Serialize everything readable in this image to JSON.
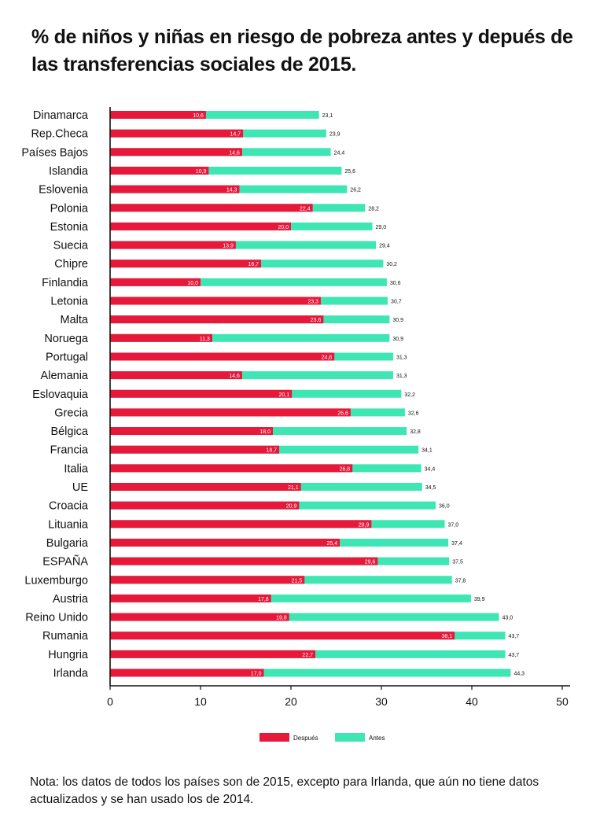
{
  "title": "% de niños y niñas en riesgo de pobreza antes y depués de las transferencias sociales de 2015.",
  "note": "Nota: los datos de todos los países son de 2015, excepto para Irlanda, que aún no tiene datos actualizados y se han usado los de 2014.",
  "colors": {
    "despues": "#e8183a",
    "antes": "#3ee6b4",
    "axis": "#111111"
  },
  "chart_data": {
    "type": "bar",
    "orientation": "horizontal",
    "stacked": "overlay",
    "categories": [
      "Dinamarca",
      "Rep.Checa",
      "Países Bajos",
      "Islandia",
      "Eslovenia",
      "Polonia",
      "Estonia",
      "Suecia",
      "Chipre",
      "Finlandia",
      "Letonia",
      "Malta",
      "Noruega",
      "Portugal",
      "Alemania",
      "Eslovaquia",
      "Grecia",
      "Bélgica",
      "Francia",
      "Italia",
      "UE",
      "Croacia",
      "Lituania",
      "Bulgaria",
      "ESPAÑA",
      "Luxemburgo",
      "Austria",
      "Reino Unido",
      "Rumania",
      "Hungria",
      "Irlanda"
    ],
    "series": [
      {
        "name": "Después",
        "values": [
          10.6,
          14.7,
          14.6,
          10.9,
          14.3,
          22.4,
          20.0,
          13.9,
          16.7,
          10.0,
          23.3,
          23.6,
          11.3,
          24.8,
          14.6,
          20.1,
          26.6,
          18.0,
          18.7,
          26.8,
          21.1,
          20.9,
          28.9,
          25.4,
          29.6,
          21.5,
          17.8,
          19.8,
          38.1,
          22.7,
          17.0
        ]
      },
      {
        "name": "Antes",
        "values": [
          23.1,
          23.9,
          24.4,
          25.6,
          26.2,
          28.2,
          29.0,
          29.4,
          30.2,
          30.6,
          30.7,
          30.9,
          30.9,
          31.3,
          31.3,
          32.2,
          32.6,
          32.8,
          34.1,
          34.4,
          34.5,
          36.0,
          37.0,
          37.4,
          37.5,
          37.8,
          39.9,
          43.0,
          43.7,
          43.7,
          44.3
        ]
      }
    ],
    "despues_labels": [
      "10,6",
      "14,7",
      "14,6",
      "10,9",
      "14,3",
      "22,4",
      "20,0",
      "13,9",
      "16,7",
      "10,0",
      "23,3",
      "23,6",
      "11,3",
      "24,8",
      "14,6",
      "20,1",
      "26,6",
      "18,0",
      "18,7",
      "26,8",
      "21,1",
      "20,9",
      "28,9",
      "25,4",
      "29,6",
      "21,5",
      "17,8",
      "19,8",
      "38,1",
      "22,7",
      "17,0"
    ],
    "antes_labels": [
      "23,1",
      "23,9",
      "24,4",
      "25,6",
      "26,2",
      "28,2",
      "29,0",
      "29,4",
      "30,2",
      "30,6",
      "30,7",
      "30,9",
      "30,9",
      "31,3",
      "31,3",
      "32,2",
      "32,6",
      "32,8",
      "34,1",
      "34,4",
      "34,5",
      "36,0",
      "37,0",
      "37,4",
      "37,5",
      "37,8",
      "39,9",
      "43,0",
      "43,7",
      "43,7",
      "44,3"
    ],
    "xlim": [
      0,
      50
    ],
    "xticks": [
      "0",
      "10",
      "20",
      "30",
      "40",
      "50"
    ],
    "legend": [
      "Después",
      "Antes"
    ],
    "legend_position": "bottom-center",
    "grid": false
  }
}
